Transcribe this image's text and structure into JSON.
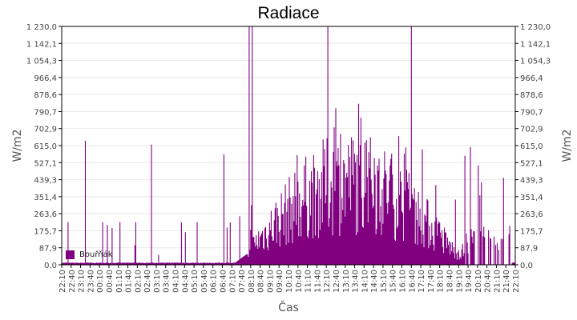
{
  "chart_data": {
    "type": "bar",
    "title": "Radiace",
    "xlabel": "Čas",
    "ylabel": "W/m2",
    "ylabel_right": "W/m2",
    "ylim": [
      0,
      1230
    ],
    "yticks": [
      "0,0",
      "87,9",
      "175,7",
      "263,6",
      "351,4",
      "439,3",
      "527,1",
      "615,0",
      "702,9",
      "790,7",
      "878,6",
      "966,4",
      "1 054,3",
      "1 142,1",
      "1 230,0"
    ],
    "xticks": [
      "22:10",
      "22:40",
      "23:10",
      "23:40",
      "00:10",
      "00:40",
      "01:10",
      "01:40",
      "02:10",
      "02:40",
      "03:10",
      "03:40",
      "04:10",
      "04:40",
      "05:10",
      "05:40",
      "06:10",
      "06:40",
      "07:10",
      "07:40",
      "08:10",
      "08:40",
      "09:10",
      "09:40",
      "10:10",
      "10:40",
      "11:10",
      "11:40",
      "12:10",
      "12:40",
      "13:10",
      "13:40",
      "14:10",
      "14:40",
      "15:10",
      "15:40",
      "16:10",
      "16:40",
      "17:10",
      "17:40",
      "18:10",
      "18:40",
      "19:10",
      "19:40",
      "20:10",
      "20:40",
      "21:10",
      "21:40",
      "22:10"
    ],
    "grid": true,
    "legend_position": "inside-bottom-left",
    "series": [
      {
        "name": "Bouřňák",
        "color": "#800080",
        "notable_spikes": [
          {
            "x": "22:30",
            "y": 220
          },
          {
            "x": "23:25",
            "y": 640
          },
          {
            "x": "00:20",
            "y": 220
          },
          {
            "x": "00:50",
            "y": 190
          },
          {
            "x": "01:15",
            "y": 220
          },
          {
            "x": "02:05",
            "y": 220
          },
          {
            "x": "02:55",
            "y": 620
          },
          {
            "x": "04:30",
            "y": 220
          },
          {
            "x": "05:20",
            "y": 220
          },
          {
            "x": "06:45",
            "y": 570
          },
          {
            "x": "07:35",
            "y": 250
          },
          {
            "x": "08:05",
            "y": 1230
          },
          {
            "x": "08:15",
            "y": 1230
          },
          {
            "x": "12:15",
            "y": 1230
          },
          {
            "x": "16:40",
            "y": 1230
          }
        ],
        "daytime_profile": {
          "night_baseline": 10,
          "morning_0900": 350,
          "noon_peak_band": [
            350,
            850
          ],
          "afternoon_1700": 450,
          "evening_2000_2210": [
            0,
            220
          ]
        }
      }
    ]
  }
}
